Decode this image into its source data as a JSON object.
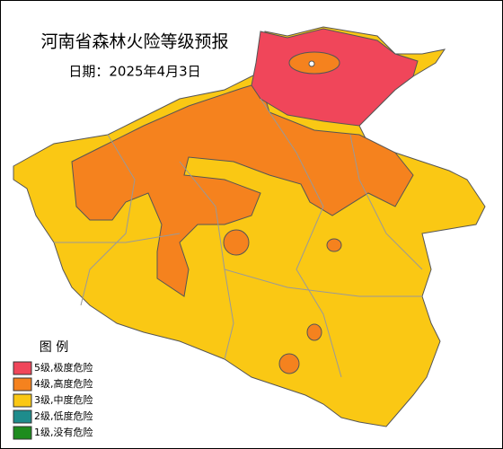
{
  "title": "河南省森林火险等级预报",
  "date": "日期：2025年4月3日",
  "legend": {
    "title": "图 例",
    "items": [
      {
        "label": "5级,极度危险",
        "color": "#f0465a"
      },
      {
        "label": "4级,高度危险",
        "color": "#f5821e"
      },
      {
        "label": "3级,中度危险",
        "color": "#fac814"
      },
      {
        "label": "2级,低度危险",
        "color": "#1e8c8c"
      },
      {
        "label": "1级,没有危险",
        "color": "#1e8c1e"
      }
    ]
  }
}
